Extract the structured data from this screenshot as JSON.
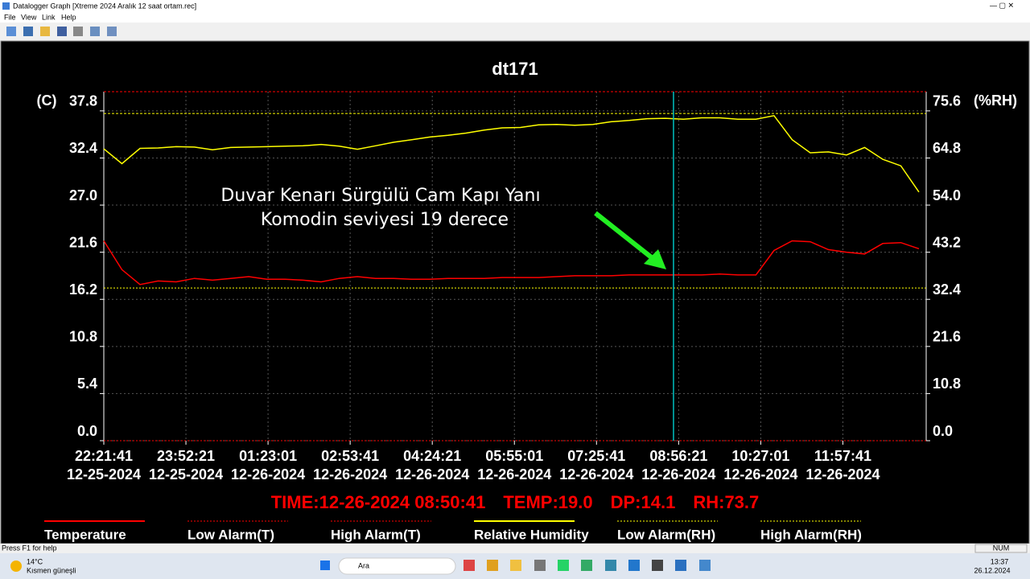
{
  "window": {
    "title": "Datalogger Graph [Xtreme 2024 Aralık 12 saat ortam.rec]",
    "menu": [
      "File",
      "View",
      "Link",
      "Help"
    ]
  },
  "chart_data": {
    "type": "line",
    "title": "dt171",
    "ylabel": "(C)",
    "y2label": "(%RH)",
    "x": [
      "12-25-2024 22:21:41",
      "12-25-2024 22:41:41",
      "12-25-2024 23:01:41",
      "12-25-2024 23:21:41",
      "12-25-2024 23:41:41",
      "12-26-2024 00:01:41",
      "12-26-2024 00:21:41",
      "12-26-2024 00:41:41",
      "12-26-2024 01:01:41",
      "12-26-2024 01:21:41",
      "12-26-2024 01:41:41",
      "12-26-2024 02:01:41",
      "12-26-2024 02:21:41",
      "12-26-2024 02:41:41",
      "12-26-2024 03:01:41",
      "12-26-2024 03:21:41",
      "12-26-2024 03:41:41",
      "12-26-2024 04:01:41",
      "12-26-2024 04:21:41",
      "12-26-2024 04:41:41",
      "12-26-2024 05:01:41",
      "12-26-2024 05:21:41",
      "12-26-2024 05:41:41",
      "12-26-2024 06:01:41",
      "12-26-2024 06:21:41",
      "12-26-2024 06:41:41",
      "12-26-2024 07:01:41",
      "12-26-2024 07:21:41",
      "12-26-2024 07:41:41",
      "12-26-2024 08:01:41",
      "12-26-2024 08:21:41",
      "12-26-2024 08:41:41",
      "12-26-2024 09:01:41",
      "12-26-2024 09:21:41",
      "12-26-2024 09:41:41",
      "12-26-2024 10:01:41",
      "12-26-2024 10:21:41",
      "12-26-2024 10:41:41",
      "12-26-2024 11:01:41",
      "12-26-2024 11:21:41",
      "12-26-2024 11:41:41",
      "12-26-2024 12:01:41",
      "12-26-2024 12:21:41",
      "12-26-2024 12:41:41",
      "12-26-2024 13:01:41",
      "12-26-2024 13:21:41"
    ],
    "series": [
      {
        "name": "Temperature",
        "color": "#ff0000",
        "axis": "y",
        "values": [
          22.9,
          19.6,
          17.9,
          18.3,
          18.2,
          18.6,
          18.4,
          18.6,
          18.8,
          18.5,
          18.5,
          18.4,
          18.2,
          18.6,
          18.8,
          18.6,
          18.6,
          18.5,
          18.5,
          18.6,
          18.6,
          18.6,
          18.7,
          18.7,
          18.7,
          18.8,
          18.9,
          18.9,
          18.9,
          19.0,
          19.0,
          19.0,
          19.0,
          19.0,
          19.1,
          19.0,
          19.0,
          21.8,
          22.9,
          22.8,
          21.9,
          21.6,
          21.4,
          22.6,
          22.7,
          22.0
        ]
      },
      {
        "name": "Relative Humidity",
        "color": "#ffff00",
        "axis": "y2",
        "values": [
          66.9,
          63.5,
          67.0,
          67.1,
          67.4,
          67.3,
          66.7,
          67.2,
          67.3,
          67.4,
          67.5,
          67.6,
          67.9,
          67.5,
          66.8,
          67.6,
          68.4,
          69.0,
          69.6,
          70.0,
          70.5,
          71.2,
          71.7,
          71.8,
          72.4,
          72.5,
          72.3,
          72.5,
          73.1,
          73.4,
          73.8,
          73.9,
          73.7,
          74.0,
          74.0,
          73.7,
          73.7,
          74.5,
          69.0,
          66.0,
          66.2,
          65.5,
          67.2,
          64.5,
          63.0,
          57.0
        ]
      }
    ],
    "alarms": [
      {
        "name": "Low Alarm(T)",
        "color": "#ff0000",
        "axis": "y",
        "value": 0
      },
      {
        "name": "High Alarm(T)",
        "color": "#ff0000",
        "axis": "y",
        "value": 40
      },
      {
        "name": "Low Alarm(RH)",
        "color": "#ffff00",
        "axis": "y2",
        "value": 35
      },
      {
        "name": "High Alarm(RH)",
        "color": "#ffff00",
        "axis": "y2",
        "value": 75
      }
    ],
    "xlim": [
      "12-25-2024 22:21:41",
      "12-26-2024 13:29:41"
    ],
    "xticks": [
      {
        "value": "12-25-2024 22:21:41",
        "label": "22:21:41",
        "sublabel": "12-25-2024"
      },
      {
        "value": "12-25-2024 23:52:21",
        "label": "23:52:21",
        "sublabel": "12-25-2024"
      },
      {
        "value": "12-26-2024 01:23:01",
        "label": "01:23:01",
        "sublabel": "12-26-2024"
      },
      {
        "value": "12-26-2024 02:53:41",
        "label": "02:53:41",
        "sublabel": "12-26-2024"
      },
      {
        "value": "12-26-2024 04:24:21",
        "label": "04:24:21",
        "sublabel": "12-26-2024"
      },
      {
        "value": "12-26-2024 05:55:01",
        "label": "05:55:01",
        "sublabel": "12-26-2024"
      },
      {
        "value": "12-26-2024 07:25:41",
        "label": "07:25:41",
        "sublabel": "12-26-2024"
      },
      {
        "value": "12-26-2024 08:56:21",
        "label": "08:56:21",
        "sublabel": "12-26-2024"
      },
      {
        "value": "12-26-2024 10:27:01",
        "label": "10:27:01",
        "sublabel": "12-26-2024"
      },
      {
        "value": "12-26-2024 11:57:41",
        "label": "11:57:41",
        "sublabel": "12-26-2024"
      }
    ],
    "ylim": [
      0,
      40
    ],
    "yticks": [
      {
        "value": 0,
        "label": "0.0"
      },
      5.4,
      10.8,
      16.2,
      21.6,
      {
        "value": 27,
        "label": "27.0"
      },
      32.4,
      37.8
    ],
    "y2lim": [
      0,
      80
    ],
    "y2ticks": [
      {
        "value": 0,
        "label": "0.0"
      },
      10.8,
      21.6,
      32.4,
      43.2,
      {
        "value": 54,
        "label": "54.0"
      },
      64.8,
      75.6
    ],
    "grid": true,
    "annotation": [
      "Duvar Kenarı Sürgülü Cam Kapı Yanı",
      "Komodin seviyesi 19 derece"
    ],
    "readout": [
      {
        "label": "TIME:",
        "value": "12-26-2024 08:50:41"
      },
      {
        "label": "TEMP:",
        "value": "19.0"
      },
      {
        "label": "DP:",
        "value": "14.1"
      },
      {
        "label": "RH:",
        "value": "73.7"
      }
    ],
    "cursor_color": "#00c0c0"
  },
  "status": {
    "left": "Press F1 for help",
    "right": "NUM"
  },
  "taskbar": {
    "weather_temp": "14°C",
    "weather_text": "Kısmen güneşli",
    "search": "Ara",
    "time": "13:37",
    "date": "26.12.2024"
  }
}
